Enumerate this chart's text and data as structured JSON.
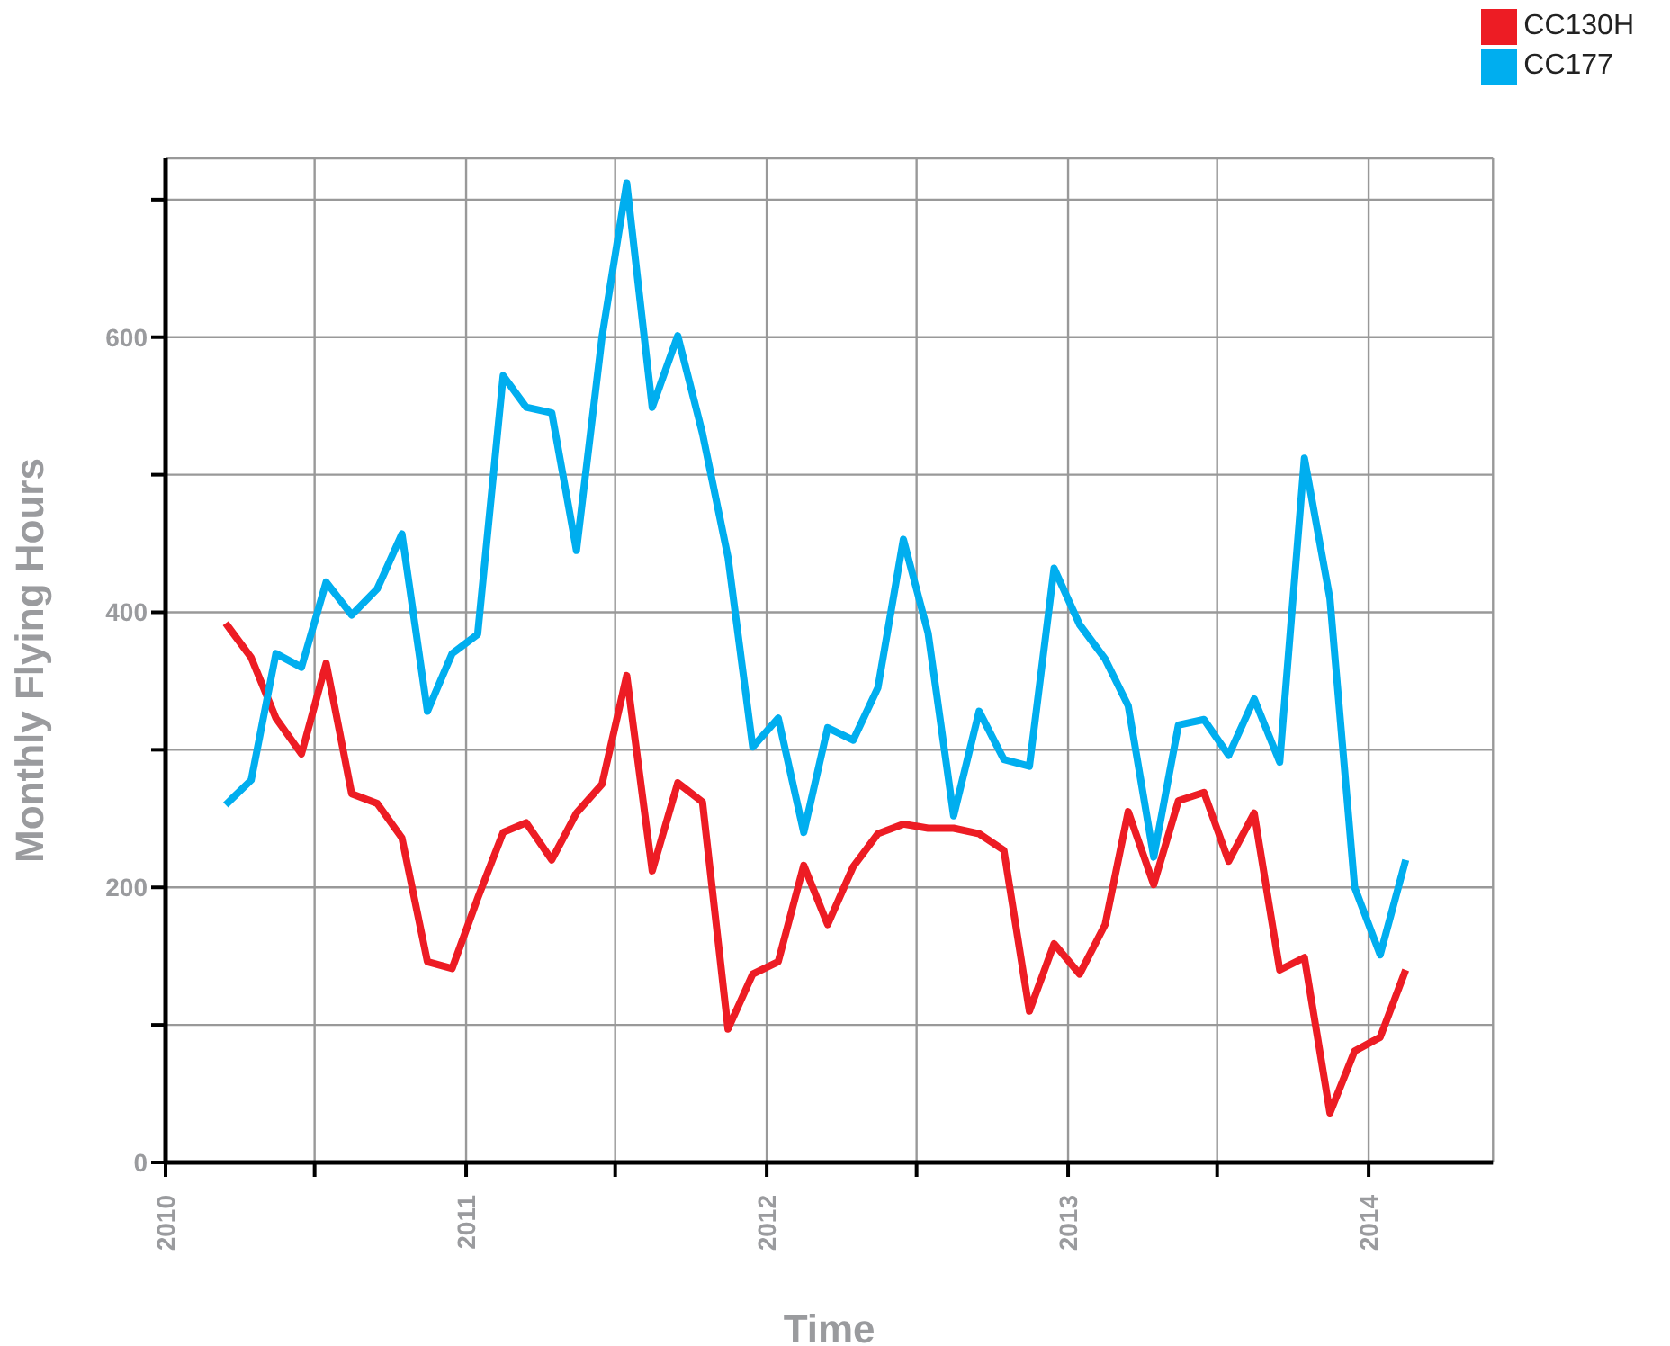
{
  "chart_data": {
    "type": "line",
    "xlabel": "Time",
    "ylabel": "Monthly Flying Hours",
    "x": [
      "2010-03-15",
      "2010-04-15",
      "2010-05-15",
      "2010-06-15",
      "2010-07-15",
      "2010-08-15",
      "2010-09-15",
      "2010-10-15",
      "2010-11-15",
      "2010-12-15",
      "2011-01-15",
      "2011-02-15",
      "2011-03-15",
      "2011-04-15",
      "2011-05-15",
      "2011-06-15",
      "2011-07-15",
      "2011-08-15",
      "2011-09-15",
      "2011-10-15",
      "2011-11-15",
      "2011-12-15",
      "2012-01-15",
      "2012-02-15",
      "2012-03-15",
      "2012-04-15",
      "2012-05-15",
      "2012-06-15",
      "2012-07-15",
      "2012-08-15",
      "2012-09-15",
      "2012-10-15",
      "2012-11-15",
      "2012-12-15",
      "2013-01-15",
      "2013-02-15",
      "2013-03-15",
      "2013-04-15",
      "2013-05-15",
      "2013-06-15",
      "2013-07-15",
      "2013-08-15",
      "2013-09-15",
      "2013-10-15",
      "2013-11-15",
      "2013-12-15",
      "2014-01-15",
      "2014-02-15"
    ],
    "series": [
      {
        "name": "CC130H",
        "color": "#ed1c24",
        "values": [
          392,
          367,
          323,
          297,
          363,
          268,
          261,
          236,
          146,
          141,
          192,
          240,
          247,
          220,
          254,
          275,
          354,
          212,
          276,
          262,
          97,
          137,
          146,
          216,
          173,
          215,
          239,
          246,
          243,
          243,
          239,
          227,
          110,
          159,
          137,
          173,
          255,
          202,
          263,
          269,
          219,
          254,
          140,
          149,
          36,
          81,
          91,
          140
        ]
      },
      {
        "name": "CC177",
        "color": "#00aeef",
        "values": [
          260,
          278,
          370,
          360,
          422,
          398,
          417,
          457,
          328,
          370,
          384,
          572,
          549,
          545,
          445,
          600,
          712,
          549,
          601,
          530,
          440,
          302,
          323,
          240,
          316,
          307,
          345,
          453,
          385,
          252,
          328,
          293,
          288,
          432,
          391,
          366,
          332,
          222,
          318,
          322,
          296,
          337,
          291,
          512,
          410,
          200,
          151,
          220
        ]
      }
    ],
    "xlim": [
      "2010",
      "2014-06"
    ],
    "xticks": [
      {
        "value": "2010",
        "label": "2010"
      },
      {
        "value": "2010-07",
        "label": null
      },
      {
        "value": "2011",
        "label": "2011"
      },
      {
        "value": "2011-07",
        "label": null
      },
      {
        "value": "2012",
        "label": "2012"
      },
      {
        "value": "2012-07",
        "label": null
      },
      {
        "value": "2013",
        "label": "2013"
      },
      {
        "value": "2013-07",
        "label": null
      },
      {
        "value": "2014",
        "label": "2014"
      }
    ],
    "ylim": [
      0,
      730
    ],
    "yticks": [
      0,
      {
        "value": 100,
        "label": null
      },
      200,
      {
        "value": 300,
        "label": null
      },
      400,
      {
        "value": 500,
        "label": null
      },
      600,
      {
        "value": 700,
        "label": null
      }
    ],
    "grid": true,
    "legend": "top right",
    "marker": "none",
    "line_style": "solid"
  }
}
